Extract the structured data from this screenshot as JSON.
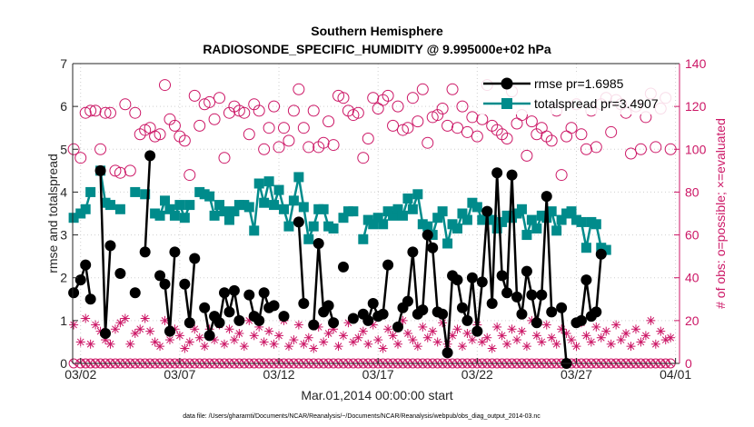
{
  "chart_data": {
    "type": "line",
    "title": "Southern Hemisphere",
    "subtitle": "RADIOSONDE_SPECIFIC_HUMIDITY @ 9.995000e+02 hPa",
    "xlabel": "Mar.01,2014 00:00:00 start",
    "ylabel_left": "rmse and totalspread",
    "ylabel_right": "# of obs: o=possible; ×=evaluated",
    "footnote": "data file: /Users/gharamti/Documents/NCAR/Reanalysis/~/Documents/NCAR/Reanalysis/webpub/obs_diag_output_2014-03.nc",
    "x_tick_labels": [
      "03/02",
      "03/07",
      "03/12",
      "03/17",
      "03/22",
      "03/27",
      "04/01"
    ],
    "x_tick_days": [
      1,
      6,
      11,
      16,
      21,
      26,
      31
    ],
    "xlim_days": [
      0.6,
      31.2
    ],
    "ylim_left": [
      0,
      7
    ],
    "ylim_right": [
      0,
      140
    ],
    "yticks_left": [
      "0",
      "1",
      "2",
      "3",
      "4",
      "5",
      "6",
      "7"
    ],
    "yticks_right": [
      "0",
      "20",
      "40",
      "60",
      "80",
      "100",
      "120",
      "140"
    ],
    "legend_position": "top-right",
    "grid": true,
    "colors": {
      "rmse": "#000000",
      "totalspread": "#008b8b",
      "obs": "#cc1766"
    },
    "x_days": [
      0.65,
      1.0,
      1.25,
      1.5,
      1.75,
      2.0,
      2.25,
      2.5,
      2.75,
      3.0,
      3.25,
      3.5,
      3.75,
      4.0,
      4.25,
      4.5,
      4.75,
      5.0,
      5.25,
      5.5,
      5.75,
      6.0,
      6.25,
      6.5,
      6.75,
      7.0,
      7.25,
      7.5,
      7.75,
      8.0,
      8.25,
      8.5,
      8.75,
      9.0,
      9.25,
      9.5,
      9.75,
      10.0,
      10.25,
      10.5,
      10.75,
      11.0,
      11.25,
      11.5,
      11.75,
      12.0,
      12.25,
      12.5,
      12.75,
      13.0,
      13.25,
      13.5,
      13.75,
      14.0,
      14.25,
      14.5,
      14.75,
      15.0,
      15.25,
      15.5,
      15.75,
      16.0,
      16.25,
      16.5,
      16.75,
      17.0,
      17.25,
      17.5,
      17.75,
      18.0,
      18.25,
      18.5,
      18.75,
      19.0,
      19.25,
      19.5,
      19.75,
      20.0,
      20.25,
      20.5,
      20.75,
      21.0,
      21.25,
      21.5,
      21.75,
      22.0,
      22.25,
      22.5,
      22.75,
      23.0,
      23.25,
      23.5,
      23.75,
      24.0,
      24.25,
      24.5,
      24.75,
      25.0,
      25.25,
      25.5,
      25.75,
      26.0,
      26.25,
      26.5,
      26.75,
      27.0,
      27.25,
      27.5,
      27.75,
      28.0,
      28.25,
      28.5,
      28.75,
      29.0,
      29.25,
      29.5,
      29.75,
      30.0,
      30.25,
      30.5,
      30.75
    ],
    "series": [
      {
        "name": "rmse pr=1.6985",
        "values": [
          1.65,
          1.95,
          2.3,
          1.5,
          null,
          4.5,
          0.7,
          2.75,
          null,
          2.1,
          null,
          null,
          1.65,
          null,
          2.6,
          4.85,
          null,
          2.05,
          1.85,
          0.75,
          2.6,
          null,
          1.85,
          0.95,
          2.45,
          null,
          1.3,
          0.65,
          1.1,
          0.95,
          1.65,
          1.2,
          1.7,
          1.0,
          null,
          1.6,
          1.1,
          1.0,
          1.65,
          1.3,
          1.35,
          null,
          1.1,
          null,
          null,
          3.3,
          1.4,
          null,
          0.9,
          2.8,
          1.2,
          1.35,
          0.95,
          null,
          2.25,
          null,
          1.05,
          null,
          1.15,
          1.0,
          1.4,
          1.1,
          1.15,
          2.3,
          null,
          0.85,
          1.3,
          1.45,
          2.6,
          1.15,
          1.25,
          3.0,
          2.7,
          1.2,
          1.15,
          0.25,
          2.05,
          1.95,
          1.3,
          1.0,
          2.0,
          0.75,
          1.9,
          3.55,
          1.4,
          4.45,
          2.05,
          1.65,
          4.4,
          1.55,
          1.15,
          2.15,
          1.6,
          0.95,
          1.6,
          3.9,
          1.2,
          null,
          1.3,
          0.0,
          null,
          0.95,
          1.0,
          1.95,
          1.1,
          1.2,
          2.55,
          null,
          null,
          null,
          null,
          null,
          null,
          null,
          null,
          null,
          null,
          null,
          null,
          null,
          null
        ]
      },
      {
        "name": "totalspread pr=3.4907",
        "values": [
          3.4,
          3.5,
          3.6,
          4.0,
          null,
          4.5,
          3.75,
          3.7,
          null,
          3.6,
          null,
          null,
          4.0,
          null,
          3.95,
          null,
          3.5,
          3.45,
          3.8,
          3.6,
          3.45,
          3.7,
          3.4,
          3.7,
          null,
          4.0,
          3.95,
          3.9,
          3.45,
          3.7,
          3.55,
          3.35,
          3.55,
          3.7,
          3.7,
          3.65,
          3.1,
          4.2,
          3.75,
          4.25,
          3.7,
          4.05,
          3.6,
          3.2,
          3.8,
          4.35,
          3.65,
          2.9,
          3.2,
          3.6,
          3.6,
          3.2,
          3.15,
          null,
          3.4,
          3.55,
          3.55,
          null,
          2.9,
          3.35,
          3.25,
          3.4,
          3.25,
          3.55,
          3.45,
          3.6,
          3.45,
          3.85,
          3.6,
          3.95,
          3.25,
          3.2,
          3.0,
          3.4,
          3.55,
          2.8,
          3.25,
          3.15,
          3.5,
          3.35,
          3.75,
          3.65,
          3.35,
          3.5,
          3.35,
          3.15,
          3.3,
          3.45,
          3.4,
          3.5,
          3.6,
          3.0,
          3.35,
          3.15,
          3.45,
          3.4,
          3.55,
          3.1,
          3.35,
          3.5,
          3.55,
          3.35,
          3.3,
          2.7,
          3.3,
          3.25,
          2.7,
          2.65,
          null,
          null,
          null,
          null,
          null,
          null,
          null,
          null,
          null,
          null,
          null,
          null
        ]
      }
    ],
    "obs_possible": [
      100,
      96,
      117,
      118,
      118,
      100,
      117,
      117,
      90,
      89,
      121,
      90,
      117,
      107,
      109,
      110,
      106,
      107,
      130,
      114,
      111,
      106,
      104,
      88,
      125,
      111,
      121,
      122,
      114,
      124,
      96,
      117,
      120,
      118,
      117,
      107,
      121,
      118,
      100,
      110,
      120,
      101,
      110,
      104,
      118,
      128,
      110,
      101,
      118,
      101,
      103,
      113,
      102,
      125,
      124,
      118,
      116,
      117,
      96,
      105,
      124,
      119,
      123,
      125,
      111,
      120,
      109,
      110,
      124,
      113,
      128,
      103,
      115,
      116,
      119,
      111,
      128,
      110,
      120,
      108,
      115,
      106,
      114,
      130,
      111,
      109,
      107,
      105,
      127,
      112,
      116,
      97,
      113,
      107,
      110,
      106,
      104,
      118,
      88,
      106,
      110,
      121,
      107,
      100,
      118,
      101,
      121,
      124,
      108,
      123,
      121,
      117,
      98,
      120,
      100,
      115,
      126,
      101,
      119,
      124,
      100
    ],
    "obs_evaluated": [
      18,
      10,
      21,
      9,
      18,
      15,
      11,
      9,
      16,
      19,
      21,
      9,
      14,
      16,
      21,
      15,
      10,
      8,
      20,
      11,
      16,
      13,
      7,
      10,
      16,
      12,
      8,
      16,
      11,
      18,
      9,
      16,
      11,
      14,
      8,
      20,
      13,
      17,
      10,
      15,
      9,
      13,
      20,
      8,
      11,
      18,
      9,
      12,
      7,
      17,
      10,
      14,
      16,
      8,
      13,
      19,
      10,
      12,
      15,
      9,
      18,
      11,
      7,
      16,
      13,
      9,
      20,
      14,
      11,
      8,
      17,
      12,
      15,
      10,
      19,
      9,
      13,
      16,
      8,
      14,
      11,
      18,
      10,
      12,
      7,
      17,
      13,
      9,
      16,
      11,
      15,
      8,
      20,
      13,
      10,
      18,
      12,
      9,
      16,
      14,
      11,
      8,
      19,
      13,
      10,
      17,
      12,
      15,
      9,
      18,
      11,
      14,
      8,
      16,
      10,
      13,
      20,
      9,
      15,
      11,
      12
    ]
  }
}
